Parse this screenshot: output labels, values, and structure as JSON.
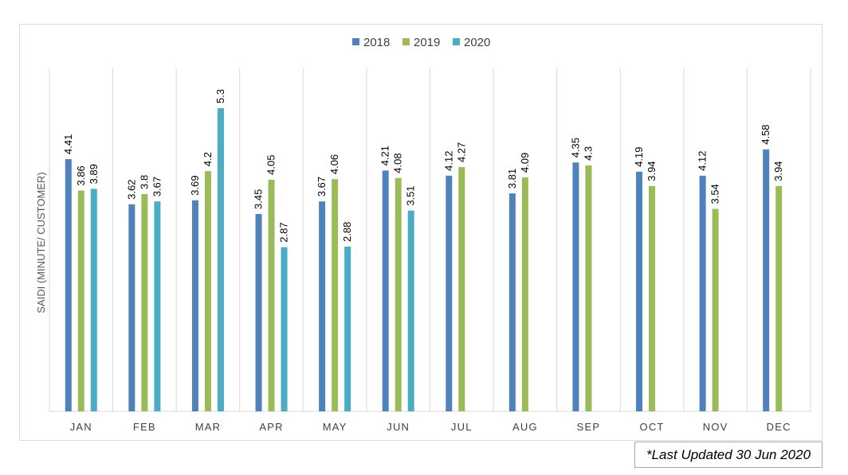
{
  "chart_data": {
    "type": "bar",
    "categories": [
      "JAN",
      "FEB",
      "MAR",
      "APR",
      "MAY",
      "JUN",
      "JUL",
      "AUG",
      "SEP",
      "OCT",
      "NOV",
      "DEC"
    ],
    "series": [
      {
        "name": "2018",
        "color": "#4f81bd",
        "values": [
          4.41,
          3.62,
          3.69,
          3.45,
          3.67,
          4.21,
          4.12,
          3.81,
          4.35,
          4.19,
          4.12,
          4.58
        ],
        "labels": [
          "4.41",
          "3.62",
          "3.69",
          "3.45",
          "3.67",
          "4.21",
          "4.12",
          "3.81",
          "4.35",
          "4.19",
          "4.12",
          "4.58"
        ]
      },
      {
        "name": "2019",
        "color": "#9bbb59",
        "values": [
          3.86,
          3.8,
          4.2,
          4.05,
          4.06,
          4.08,
          4.27,
          4.09,
          4.3,
          3.94,
          3.54,
          3.94
        ],
        "labels": [
          "3.86",
          "3.8",
          "4.2",
          "4.05",
          "4.06",
          "4.08",
          "4.27",
          "4.09",
          "4.3",
          "3.94",
          "3.54",
          "3.94"
        ]
      },
      {
        "name": "2020",
        "color": "#4bacc6",
        "values": [
          3.89,
          3.67,
          5.3,
          2.87,
          2.88,
          3.51,
          null,
          null,
          null,
          null,
          null,
          null
        ],
        "labels": [
          "3.89",
          "3.67",
          "5.3",
          "2.87",
          "2.88",
          "3.51",
          null,
          null,
          null,
          null,
          null,
          null
        ]
      }
    ],
    "title": "",
    "xlabel": "",
    "ylabel": "SAIDI (MINUTE/ CUSTOMER)",
    "ylim": [
      0,
      5.3
    ],
    "grid": "vertical",
    "legend": "top-center"
  },
  "note": "*Last Updated 30 Jun 2020"
}
